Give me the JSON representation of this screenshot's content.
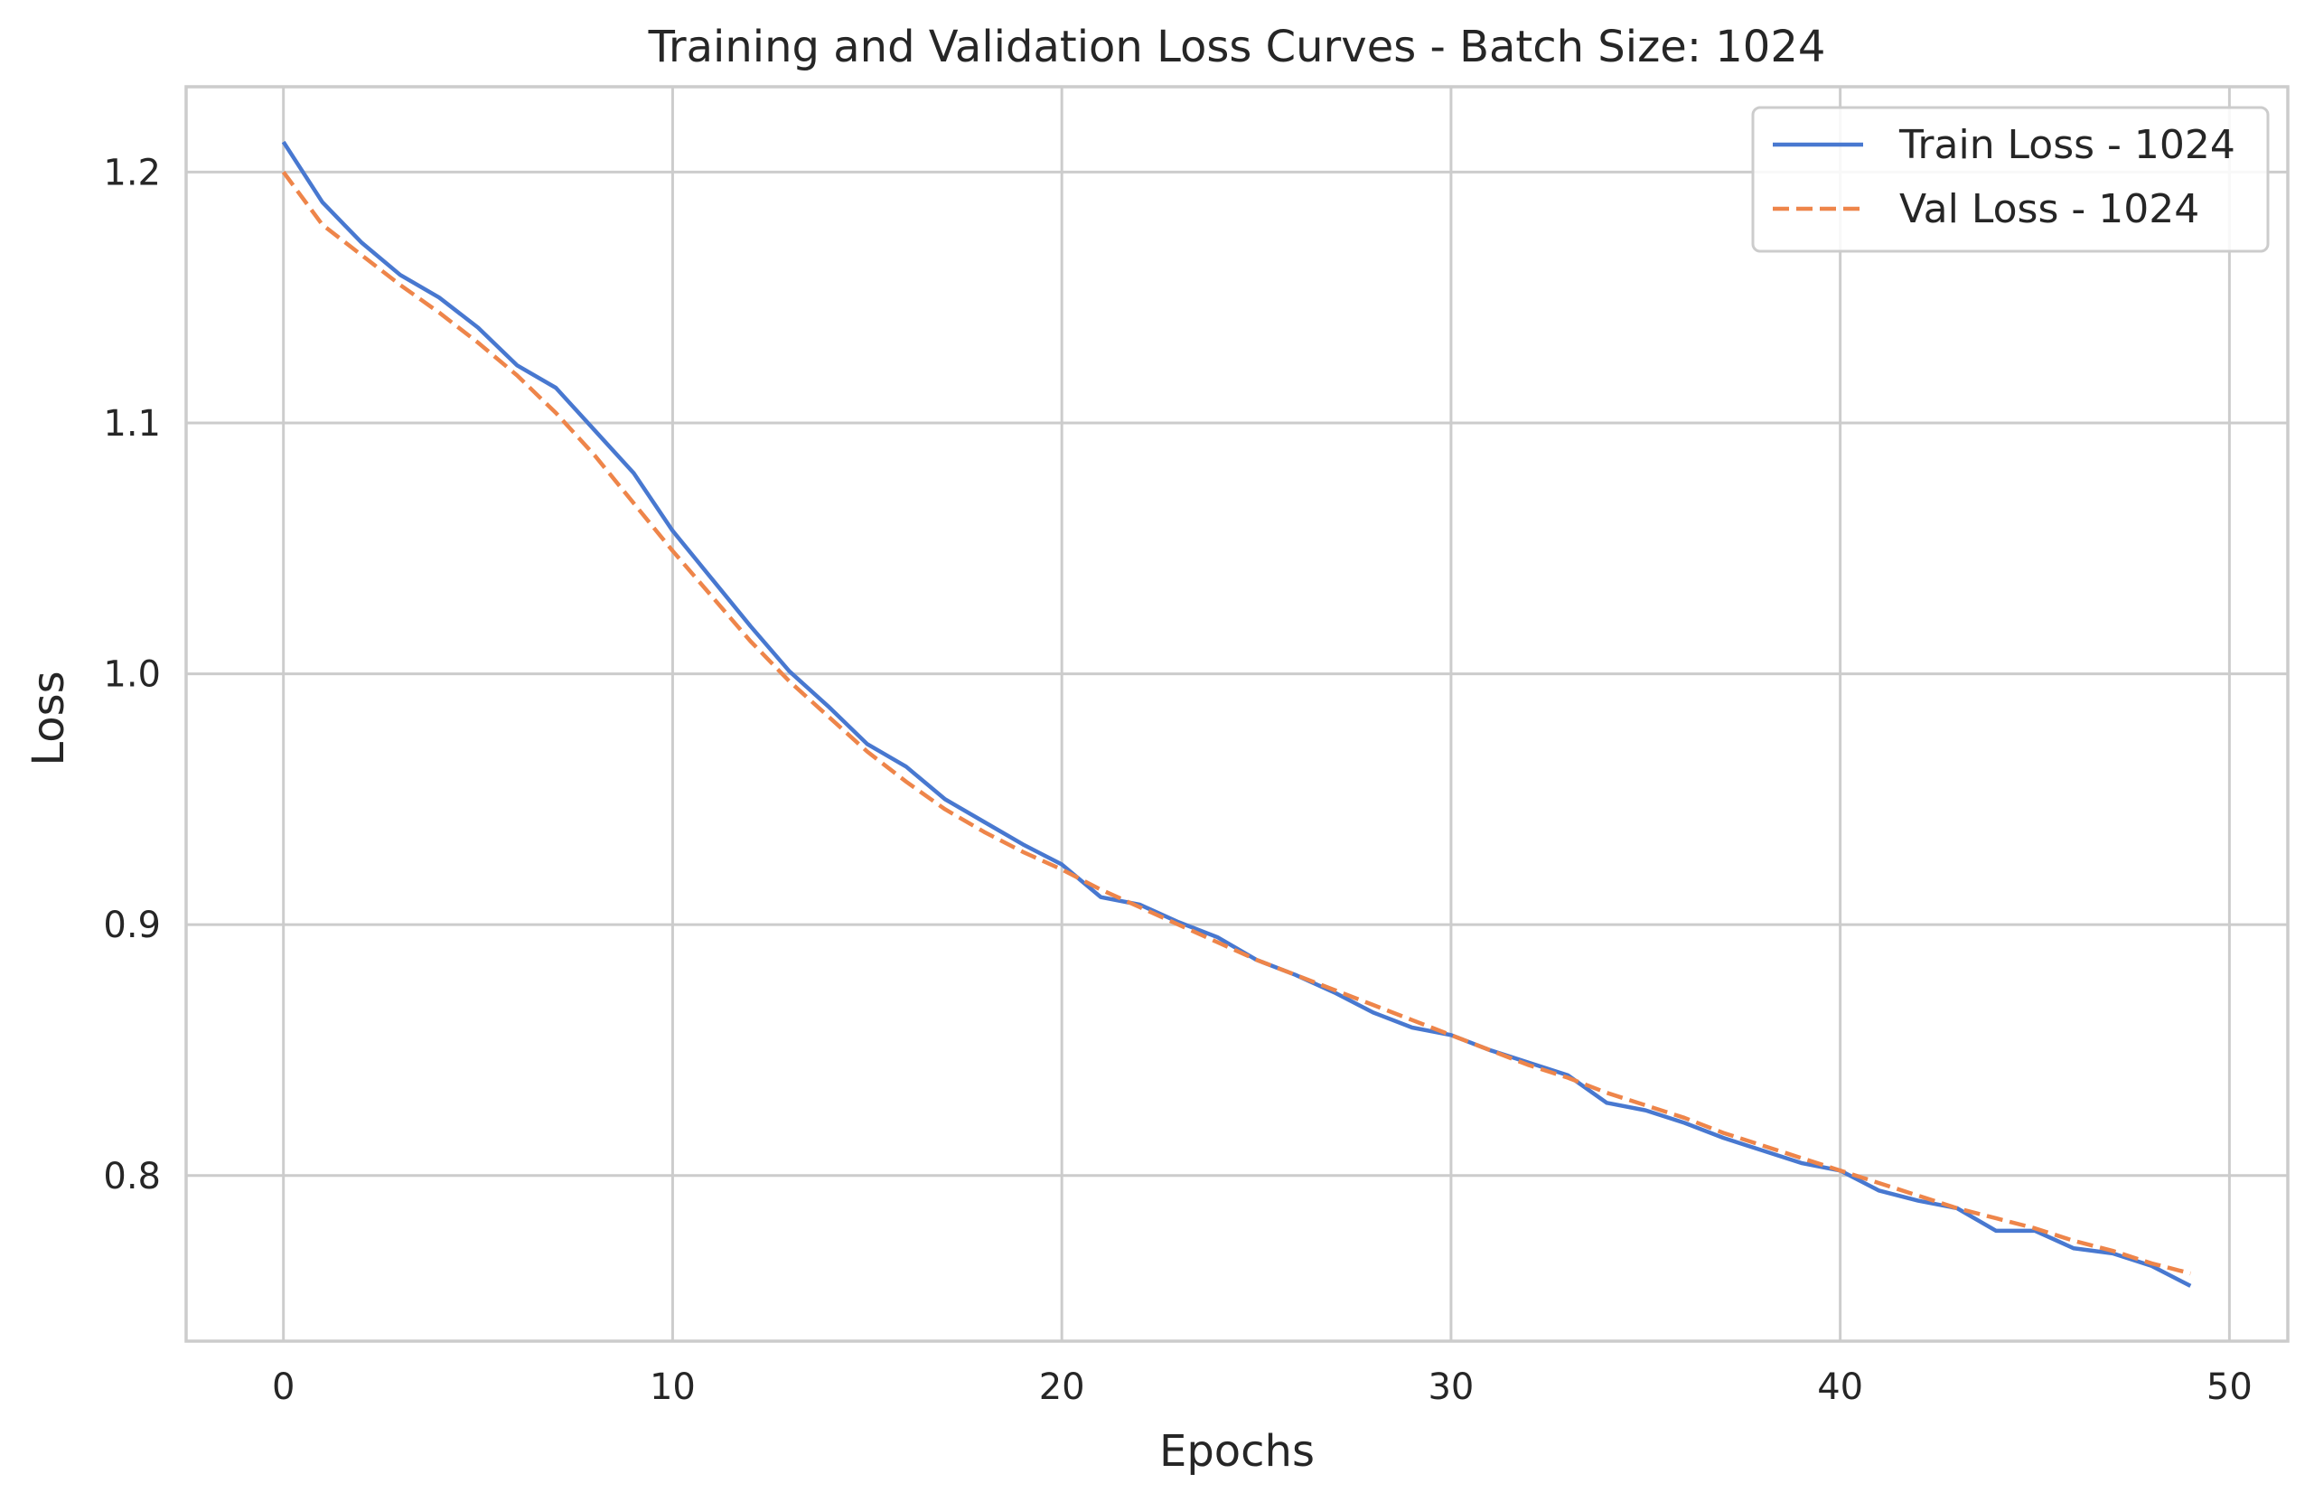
{
  "chart_data": {
    "type": "line",
    "title": "Training and Validation Loss Curves - Batch Size: 1024",
    "xlabel": "Epochs",
    "ylabel": "Loss",
    "xlim": [
      -2.5,
      51.5
    ],
    "ylim": [
      0.734,
      1.234
    ],
    "x_ticks": [
      0,
      10,
      20,
      30,
      40,
      50
    ],
    "y_ticks": [
      0.8,
      0.9,
      1.0,
      1.1,
      1.2
    ],
    "x_tick_labels": [
      "0",
      "10",
      "20",
      "30",
      "40",
      "50"
    ],
    "y_tick_labels": [
      "0.8",
      "0.9",
      "1.0",
      "1.1",
      "1.2"
    ],
    "grid": true,
    "legend_position": "top-right",
    "x": [
      0,
      1,
      2,
      3,
      4,
      5,
      6,
      7,
      8,
      9,
      10,
      11,
      12,
      13,
      14,
      15,
      16,
      17,
      18,
      19,
      20,
      21,
      22,
      23,
      24,
      25,
      26,
      27,
      28,
      29,
      30,
      31,
      32,
      33,
      34,
      35,
      36,
      37,
      38,
      39,
      40,
      41,
      42,
      43,
      44,
      45,
      46,
      47,
      48,
      49
    ],
    "series": [
      {
        "name": "Train Loss - 1024",
        "color": "#4878d0",
        "style": "solid",
        "values": [
          1.212,
          1.188,
          1.172,
          1.159,
          1.15,
          1.138,
          1.123,
          1.114,
          1.097,
          1.08,
          1.057,
          1.038,
          1.019,
          1.001,
          0.987,
          0.972,
          0.963,
          0.95,
          0.941,
          0.932,
          0.924,
          0.911,
          0.908,
          0.901,
          0.895,
          0.886,
          0.88,
          0.873,
          0.865,
          0.859,
          0.856,
          0.85,
          0.845,
          0.84,
          0.829,
          0.826,
          0.821,
          0.815,
          0.81,
          0.805,
          0.802,
          0.794,
          0.79,
          0.787,
          0.778,
          0.778,
          0.771,
          0.769,
          0.764,
          0.756
        ]
      },
      {
        "name": "Val Loss - 1024",
        "color": "#ee854a",
        "style": "dashed",
        "values": [
          1.2,
          1.179,
          1.167,
          1.155,
          1.144,
          1.132,
          1.119,
          1.104,
          1.087,
          1.068,
          1.049,
          1.031,
          1.013,
          0.997,
          0.983,
          0.969,
          0.957,
          0.946,
          0.937,
          0.929,
          0.922,
          0.914,
          0.907,
          0.9,
          0.893,
          0.886,
          0.88,
          0.874,
          0.868,
          0.862,
          0.856,
          0.85,
          0.844,
          0.839,
          0.833,
          0.828,
          0.823,
          0.817,
          0.812,
          0.807,
          0.802,
          0.797,
          0.792,
          0.787,
          0.783,
          0.779,
          0.774,
          0.77,
          0.765,
          0.761
        ]
      }
    ]
  }
}
